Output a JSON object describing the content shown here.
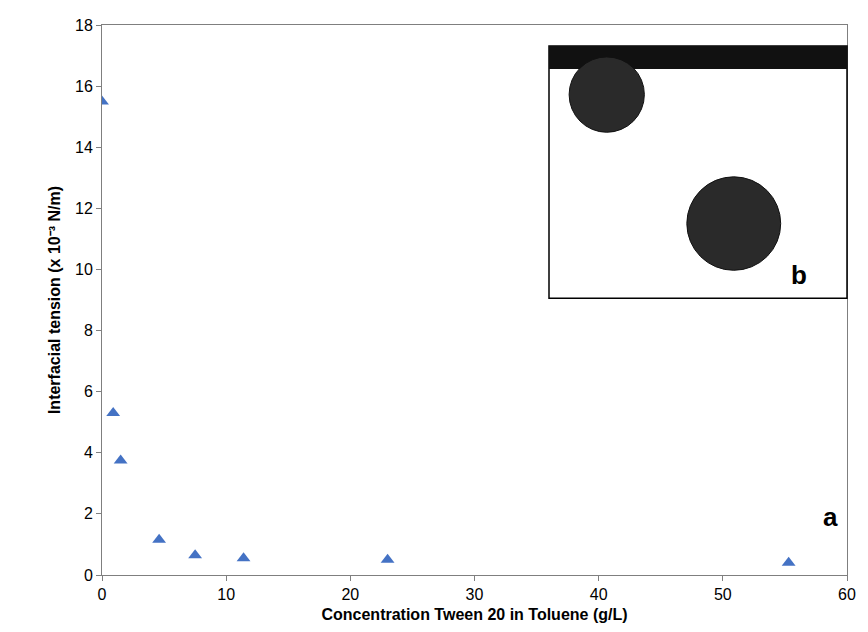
{
  "chart_data": {
    "type": "scatter",
    "x_label": "Concentration Tween 20 in Toluene (g/L)",
    "y_label": "Interfacial tension (x 10⁻³ N/m)",
    "x": [
      0,
      0.9,
      1.5,
      4.6,
      7.5,
      11.4,
      23,
      55.3
    ],
    "values": [
      15.5,
      5.3,
      3.75,
      1.15,
      0.65,
      0.55,
      0.5,
      0.4
    ],
    "color": "#4472c4",
    "marker": "triangle-up",
    "xlim": [
      0,
      60
    ],
    "xticks": [
      0,
      10,
      20,
      30,
      40,
      50,
      60
    ],
    "ylim": [
      0,
      18
    ],
    "yticks": [
      0,
      2,
      4,
      6,
      8,
      10,
      12,
      14,
      16,
      18
    ],
    "grid": false,
    "annotations": [
      "a",
      "b"
    ]
  }
}
